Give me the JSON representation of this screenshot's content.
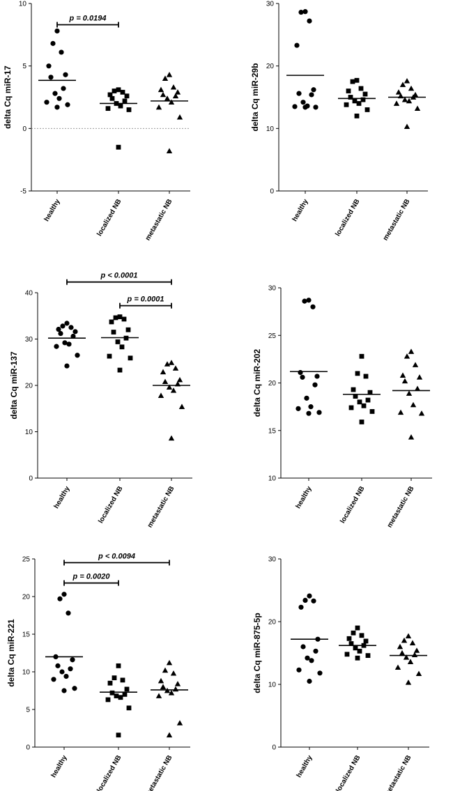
{
  "chart_data": [
    {
      "type": "scatter",
      "ylabel": "delta Cq miR-17",
      "ylim": [
        -5,
        10
      ],
      "yticks": [
        "-5",
        "0",
        "5",
        "10"
      ],
      "zero_line": true,
      "categories": [
        "healthy",
        "localized NB",
        "metastatic NB"
      ],
      "series": [
        {
          "marker": "circle",
          "values": [
            7.8,
            6.8,
            6.1,
            5.0,
            4.3,
            4.1,
            3.2,
            2.8,
            2.4,
            2.1,
            1.9,
            1.7
          ],
          "mean": 3.85
        },
        {
          "marker": "square",
          "values": [
            3.1,
            3.0,
            2.9,
            2.7,
            2.6,
            2.4,
            2.2,
            2.0,
            1.8,
            1.6,
            1.5,
            -1.5
          ],
          "mean": 2.0
        },
        {
          "marker": "triangle",
          "values": [
            4.3,
            4.0,
            3.3,
            3.1,
            2.9,
            2.7,
            2.6,
            2.4,
            2.1,
            1.7,
            0.9,
            -1.8
          ],
          "mean": 2.2
        }
      ],
      "brackets": [
        {
          "from": 0,
          "to": 1,
          "y": 8.3,
          "label": "p = 0.0194"
        }
      ]
    },
    {
      "type": "scatter",
      "ylabel": "delta Cq miR-29b",
      "ylim": [
        0,
        30
      ],
      "yticks": [
        "0",
        "10",
        "20",
        "30"
      ],
      "categories": [
        "healthy",
        "localized NB",
        "metastatic NB"
      ],
      "series": [
        {
          "marker": "circle",
          "values": [
            28.7,
            28.6,
            27.2,
            23.3,
            16.2,
            15.6,
            15.4,
            14.2,
            13.6,
            13.5,
            13.4,
            13.4
          ],
          "mean": 18.5
        },
        {
          "marker": "square",
          "values": [
            17.7,
            17.5,
            16.4,
            16.0,
            15.5,
            15.0,
            14.6,
            14.4,
            14.0,
            13.8,
            13.0,
            12.0
          ],
          "mean": 14.8
        },
        {
          "marker": "triangle",
          "values": [
            17.6,
            17.0,
            16.4,
            15.8,
            15.4,
            15.2,
            15.0,
            14.6,
            14.4,
            14.0,
            13.2,
            10.3
          ],
          "mean": 15.0
        }
      ],
      "brackets": []
    },
    {
      "type": "scatter",
      "ylabel": "delta Cq miR-137",
      "ylim": [
        0,
        40
      ],
      "yticks": [
        "0",
        "10",
        "20",
        "30",
        "40"
      ],
      "categories": [
        "healthy",
        "localized NB",
        "metastatic NB"
      ],
      "series": [
        {
          "marker": "circle",
          "values": [
            33.4,
            32.8,
            32.5,
            32.1,
            31.6,
            31.2,
            30.6,
            29.2,
            28.9,
            28.4,
            26.5,
            24.2
          ],
          "mean": 30.2
        },
        {
          "marker": "square",
          "values": [
            34.8,
            34.6,
            34.3,
            33.7,
            32.0,
            31.5,
            30.2,
            29.4,
            28.3,
            26.3,
            25.9,
            23.3
          ],
          "mean": 30.3
        },
        {
          "marker": "triangle",
          "values": [
            24.9,
            24.6,
            23.7,
            22.9,
            21.2,
            20.8,
            20.3,
            19.6,
            18.9,
            17.8,
            15.4,
            8.6
          ],
          "mean": 20.0
        }
      ],
      "brackets": [
        {
          "from": 0,
          "to": 2,
          "y": 42.3,
          "label": "p < 0.0001"
        },
        {
          "from": 1,
          "to": 2,
          "y": 37.2,
          "label": "p = 0.0001"
        }
      ]
    },
    {
      "type": "scatter",
      "ylabel": "delta Cq miR-202",
      "ylim": [
        10,
        30
      ],
      "yticks": [
        "10",
        "15",
        "20",
        "25",
        "30"
      ],
      "categories": [
        "healthy",
        "localized NB",
        "metastatic NB"
      ],
      "series": [
        {
          "marker": "circle",
          "values": [
            28.7,
            28.6,
            28.0,
            21.1,
            20.7,
            20.6,
            19.8,
            18.4,
            17.5,
            17.3,
            16.9,
            16.8
          ],
          "mean": 21.2
        },
        {
          "marker": "square",
          "values": [
            22.8,
            21.0,
            20.7,
            19.3,
            19.0,
            18.6,
            18.2,
            18.0,
            17.6,
            17.4,
            17.0,
            15.9
          ],
          "mean": 18.8
        },
        {
          "marker": "triangle",
          "values": [
            23.3,
            22.8,
            21.9,
            20.8,
            20.6,
            20.2,
            19.4,
            18.9,
            17.7,
            16.9,
            16.8,
            14.3
          ],
          "mean": 19.2
        }
      ],
      "brackets": []
    },
    {
      "type": "scatter",
      "ylabel": "delta Cq miR-221",
      "ylim": [
        0,
        25
      ],
      "yticks": [
        "0",
        "5",
        "10",
        "15",
        "20",
        "25"
      ],
      "categories": [
        "healthy",
        "localized NB",
        "metastatic NB"
      ],
      "series": [
        {
          "marker": "circle",
          "values": [
            20.3,
            19.7,
            17.8,
            12.0,
            11.6,
            10.8,
            10.4,
            10.0,
            9.4,
            9.0,
            7.8,
            7.5
          ],
          "mean": 12.0
        },
        {
          "marker": "square",
          "values": [
            10.8,
            9.2,
            8.9,
            8.5,
            7.7,
            7.2,
            7.0,
            6.8,
            6.6,
            6.3,
            5.2,
            1.6
          ],
          "mean": 7.3
        },
        {
          "marker": "triangle",
          "values": [
            11.2,
            10.2,
            9.8,
            8.8,
            8.4,
            8.0,
            7.7,
            7.5,
            7.2,
            6.8,
            3.2,
            1.6
          ],
          "mean": 7.6
        }
      ],
      "brackets": [
        {
          "from": 0,
          "to": 2,
          "y": 24.5,
          "label": "p < 0.0094"
        },
        {
          "from": 0,
          "to": 1,
          "y": 21.8,
          "label": "p = 0.0020"
        }
      ]
    },
    {
      "type": "scatter",
      "ylabel": "delta Cq miR-875-5p",
      "ylim": [
        0,
        30
      ],
      "yticks": [
        "0",
        "10",
        "20",
        "30"
      ],
      "categories": [
        "healthy",
        "localized NB",
        "metastatic NB"
      ],
      "series": [
        {
          "marker": "circle",
          "values": [
            24.1,
            23.4,
            23.3,
            22.3,
            17.2,
            16.0,
            15.3,
            14.2,
            13.8,
            12.3,
            11.8,
            10.5
          ],
          "mean": 17.2
        },
        {
          "marker": "square",
          "values": [
            19.0,
            18.2,
            17.8,
            17.3,
            16.9,
            16.5,
            16.2,
            15.8,
            15.3,
            14.8,
            14.6,
            14.2
          ],
          "mean": 16.2
        },
        {
          "marker": "triangle",
          "values": [
            17.7,
            17.0,
            16.6,
            16.0,
            15.4,
            15.0,
            14.7,
            14.3,
            13.6,
            12.7,
            11.7,
            10.3
          ],
          "mean": 14.6
        }
      ],
      "brackets": []
    }
  ]
}
